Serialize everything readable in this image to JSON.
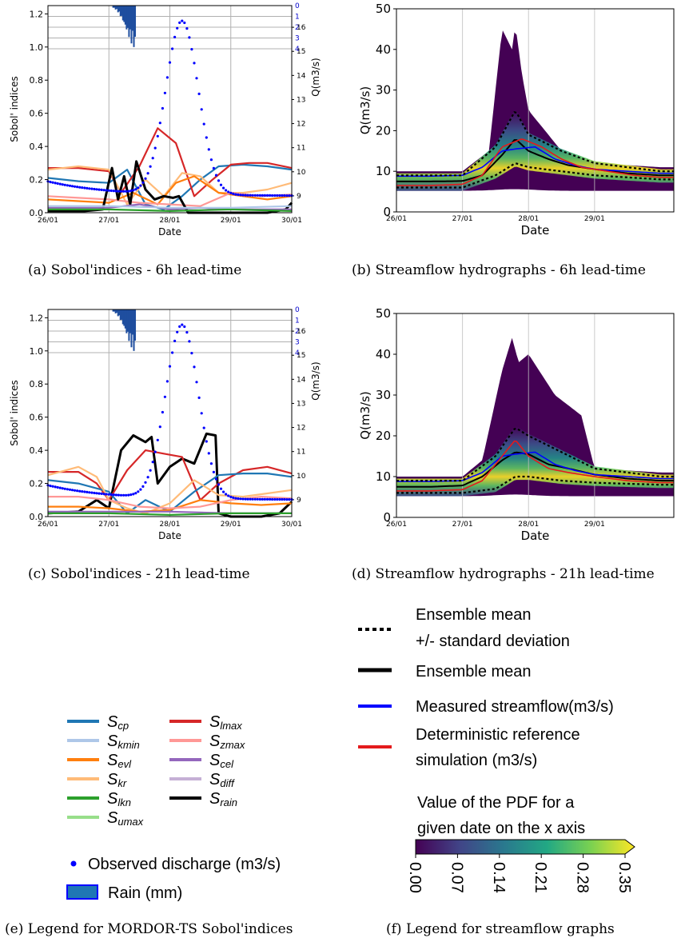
{
  "captions": {
    "a": "(a) Sobol'indices - 6h lead-time",
    "b": "(b) Streamflow hydrographs - 6h lead-time",
    "c": "(c) Sobol'indices - 21h lead-time",
    "d": "(d) Streamflow hydrographs - 21h lead-time",
    "e": "(e) Legend for MORDOR-TS Sobol'indices",
    "f": "(f) Legend for streamflow graphs"
  },
  "sobol_legend": [
    {
      "main": "S",
      "sub": "cp",
      "color": "#1f77b4"
    },
    {
      "main": "S",
      "sub": "kmin",
      "color": "#aec7e8"
    },
    {
      "main": "S",
      "sub": "evl",
      "color": "#ff7f0e"
    },
    {
      "main": "S",
      "sub": "kr",
      "color": "#ffbb78"
    },
    {
      "main": "S",
      "sub": "lkn",
      "color": "#2ca02c"
    },
    {
      "main": "S",
      "sub": "umax",
      "color": "#98df8a"
    },
    {
      "main": "S",
      "sub": "lmax",
      "color": "#d62728"
    },
    {
      "main": "S",
      "sub": "zmax",
      "color": "#ff9896"
    },
    {
      "main": "S",
      "sub": "cel",
      "color": "#9467bd"
    },
    {
      "main": "S",
      "sub": "diff",
      "color": "#c5b0d5"
    },
    {
      "main": "S",
      "sub": "rain",
      "color": "#000000"
    }
  ],
  "observed_label": "Observed discharge (m3/s)",
  "rain_label": "Rain (mm)",
  "stream_legend": {
    "line1_a": "Ensemble mean",
    "line1_b": "+/- standard deviation",
    "line2": "Ensemble mean",
    "line3": "Measured streamflow(m3/s)",
    "line4_a": "Deterministic reference",
    "line4_b": "simulation (m3/s)",
    "cbar_title_a": "Value of the PDF for a",
    "cbar_title_b": "given date on the x axis",
    "cbar_ticks": [
      "0.00",
      "0.07",
      "0.14",
      "0.21",
      "0.28",
      "0.35"
    ]
  },
  "chart_data": [
    {
      "id": "a",
      "type": "line",
      "xlabel": "Date",
      "ylabel": "Sobol' indices",
      "y2label": "Q(m3/s)",
      "x_ticks": [
        "26/01",
        "27/01",
        "28/01",
        "29/01",
        "30/01"
      ],
      "ylim": [
        0,
        1.25
      ],
      "y_ticks": [
        "0.0",
        "0.2",
        "0.4",
        "0.6",
        "0.8",
        "1.0",
        "1.2"
      ],
      "y2_ticks": [
        "9",
        "10",
        "11",
        "12",
        "13",
        "14",
        "15",
        "16"
      ],
      "rain_ticks": [
        "0",
        "1",
        "2",
        "3",
        "4"
      ],
      "series": [
        {
          "key": "cp",
          "x": [
            0,
            0.5,
            1,
            1.3,
            1.6,
            1.9,
            2.2,
            2.5,
            2.8,
            3.2,
            3.6,
            4
          ],
          "y": [
            0.21,
            0.19,
            0.18,
            0.26,
            0.05,
            0.02,
            0.1,
            0.2,
            0.28,
            0.29,
            0.28,
            0.26
          ]
        },
        {
          "key": "lmax",
          "x": [
            0,
            0.5,
            1,
            1.2,
            1.5,
            1.8,
            2.1,
            2.4,
            2.7,
            3,
            3.3,
            3.6,
            4
          ],
          "y": [
            0.27,
            0.27,
            0.25,
            0.12,
            0.28,
            0.51,
            0.42,
            0.1,
            0.2,
            0.29,
            0.3,
            0.3,
            0.27
          ]
        },
        {
          "key": "kr",
          "x": [
            0,
            0.5,
            1,
            1.3,
            1.6,
            1.9,
            2.2,
            2.5,
            2.8,
            3.2,
            3.6,
            4
          ],
          "y": [
            0.26,
            0.28,
            0.26,
            0.05,
            0.2,
            0.1,
            0.24,
            0.22,
            0.12,
            0.12,
            0.14,
            0.18
          ]
        },
        {
          "key": "evl",
          "x": [
            0,
            0.5,
            1,
            1.4,
            1.8,
            2.1,
            2.4,
            2.8,
            3.2,
            3.6,
            4
          ],
          "y": [
            0.08,
            0.07,
            0.06,
            0.12,
            0.05,
            0.18,
            0.22,
            0.12,
            0.1,
            0.08,
            0.1
          ]
        },
        {
          "key": "zmax",
          "x": [
            0,
            0.5,
            1,
            1.5,
            2,
            2.5,
            3,
            3.5,
            4
          ],
          "y": [
            0.1,
            0.09,
            0.08,
            0.06,
            0.05,
            0.04,
            0.12,
            0.1,
            0.11
          ]
        },
        {
          "key": "rain",
          "x": [
            0,
            0.6,
            0.9,
            1.05,
            1.15,
            1.25,
            1.35,
            1.45,
            1.6,
            1.75,
            1.9,
            2.05,
            2.15,
            2.3,
            2.5,
            3,
            3.6,
            3.9,
            4
          ],
          "y": [
            0.01,
            0.01,
            0.02,
            0.27,
            0.08,
            0.22,
            0.05,
            0.31,
            0.14,
            0.08,
            0.1,
            0.09,
            0.1,
            0.0,
            0.0,
            0.0,
            0.0,
            0.02,
            0.06
          ]
        },
        {
          "key": "cel",
          "x": [
            0,
            1,
            1.5,
            2,
            2.5,
            3,
            4
          ],
          "y": [
            0.03,
            0.03,
            0.05,
            0.02,
            0.03,
            0.02,
            0.02
          ]
        },
        {
          "key": "lkn",
          "x": [
            0,
            1,
            2,
            3,
            4
          ],
          "y": [
            0.02,
            0.02,
            0.01,
            0.02,
            0.01
          ]
        },
        {
          "key": "kmin",
          "x": [
            0,
            1,
            2,
            3,
            4
          ],
          "y": [
            0.04,
            0.04,
            0.03,
            0.03,
            0.04
          ]
        }
      ],
      "observed_q": {
        "x_start": 0,
        "x_end": 4,
        "peak_x": 2.2,
        "peak_q": 16.2,
        "base_q": 9
      }
    },
    {
      "id": "b",
      "type": "area",
      "xlabel": "Date",
      "ylabel": "Q(m3/s)",
      "x_ticks": [
        "26/01",
        "27/01",
        "28/01",
        "29/01"
      ],
      "ylim": [
        0,
        50
      ],
      "y_ticks": [
        "0",
        "10",
        "20",
        "30",
        "40",
        "50"
      ],
      "series": [
        {
          "key": "ensemble_mean",
          "x": [
            0,
            0.5,
            1,
            1.3,
            1.6,
            1.8,
            2,
            2.3,
            2.6,
            3,
            3.5,
            4
          ],
          "y": [
            7.5,
            7.5,
            7.6,
            9,
            14,
            18,
            15,
            13,
            11.5,
            10.5,
            9.5,
            9
          ]
        },
        {
          "key": "measured",
          "x": [
            0,
            0.5,
            1,
            1.3,
            1.6,
            1.8,
            2.1,
            2.4,
            2.7,
            3,
            3.5,
            4
          ],
          "y": [
            8.8,
            8.8,
            9,
            11,
            15,
            15.5,
            16,
            13,
            11.5,
            10.5,
            10,
            9.5
          ]
        },
        {
          "key": "reference",
          "x": [
            0,
            0.5,
            1,
            1.3,
            1.6,
            1.9,
            2.2,
            2.5,
            2.8,
            3.2,
            3.6,
            4
          ],
          "y": [
            6.5,
            6.5,
            6.8,
            9,
            16,
            18,
            16,
            13,
            11,
            10,
            9,
            8.5
          ]
        },
        {
          "key": "mean_plus_sd",
          "x": [
            0,
            1,
            1.5,
            1.8,
            2,
            2.5,
            3,
            4
          ],
          "y": [
            9,
            9,
            16,
            25,
            19,
            15,
            12,
            10
          ]
        },
        {
          "key": "mean_minus_sd",
          "x": [
            0,
            1,
            1.5,
            1.8,
            2,
            2.5,
            3,
            4
          ],
          "y": [
            6,
            6,
            9,
            12,
            11,
            10,
            9,
            8
          ]
        }
      ],
      "pdf_envelope_max": {
        "x": [
          0,
          1,
          1.4,
          1.6,
          1.75,
          1.8,
          1.9,
          2,
          2.5,
          3,
          4
        ],
        "y": [
          10,
          10,
          15,
          45,
          40,
          46,
          34,
          25,
          15,
          12,
          11
        ]
      }
    },
    {
      "id": "c",
      "type": "line",
      "xlabel": "Date",
      "ylabel": "Sobol' indices",
      "y2label": "Q(m3/s)",
      "x_ticks": [
        "26/01",
        "27/01",
        "28/01",
        "29/01",
        "30/01"
      ],
      "ylim": [
        0,
        1.25
      ],
      "y_ticks": [
        "0.0",
        "0.2",
        "0.4",
        "0.6",
        "0.8",
        "1.0",
        "1.2"
      ],
      "y2_ticks": [
        "9",
        "10",
        "11",
        "12",
        "13",
        "14",
        "15",
        "16"
      ],
      "rain_ticks": [
        "0",
        "1",
        "2",
        "3",
        "4"
      ],
      "series": [
        {
          "key": "rain",
          "x": [
            0,
            0.5,
            0.8,
            1,
            1.2,
            1.4,
            1.6,
            1.7,
            1.8,
            2,
            2.2,
            2.4,
            2.6,
            2.75,
            2.8,
            3,
            3.5,
            3.8,
            4
          ],
          "y": [
            0.02,
            0.03,
            0.1,
            0.05,
            0.4,
            0.49,
            0.45,
            0.48,
            0.2,
            0.3,
            0.35,
            0.32,
            0.5,
            0.49,
            0.02,
            0.0,
            0.0,
            0.02,
            0.09
          ]
        },
        {
          "key": "lmax",
          "x": [
            0,
            0.5,
            0.8,
            1,
            1.3,
            1.6,
            1.9,
            2.2,
            2.5,
            2.8,
            3.2,
            3.6,
            4
          ],
          "y": [
            0.27,
            0.27,
            0.2,
            0.1,
            0.28,
            0.4,
            0.38,
            0.36,
            0.1,
            0.2,
            0.28,
            0.3,
            0.26
          ]
        },
        {
          "key": "cp",
          "x": [
            0,
            0.5,
            1,
            1.3,
            1.6,
            2,
            2.4,
            2.8,
            3.2,
            3.6,
            4
          ],
          "y": [
            0.22,
            0.2,
            0.15,
            0.02,
            0.1,
            0.03,
            0.15,
            0.25,
            0.26,
            0.26,
            0.24
          ]
        },
        {
          "key": "kr",
          "x": [
            0,
            0.5,
            0.8,
            1,
            1.3,
            1.6,
            2,
            2.4,
            2.8,
            3.2,
            3.6,
            4
          ],
          "y": [
            0.25,
            0.3,
            0.24,
            0.1,
            0.05,
            0.02,
            0.08,
            0.22,
            0.13,
            0.12,
            0.14,
            0.16
          ]
        },
        {
          "key": "evl",
          "x": [
            0,
            0.5,
            1,
            1.5,
            2,
            2.5,
            3,
            3.5,
            4
          ],
          "y": [
            0.06,
            0.06,
            0.05,
            0.03,
            0.04,
            0.1,
            0.08,
            0.07,
            0.08
          ]
        },
        {
          "key": "zmax",
          "x": [
            0,
            0.5,
            1,
            1.5,
            2,
            2.5,
            3,
            3.5,
            4
          ],
          "y": [
            0.12,
            0.12,
            0.1,
            0.06,
            0.05,
            0.06,
            0.1,
            0.12,
            0.11
          ]
        },
        {
          "key": "cel",
          "x": [
            0,
            1,
            2,
            3,
            4
          ],
          "y": [
            0.03,
            0.03,
            0.03,
            0.02,
            0.02
          ]
        },
        {
          "key": "lkn",
          "x": [
            0,
            1,
            2,
            3,
            4
          ],
          "y": [
            0.02,
            0.02,
            0.01,
            0.02,
            0.02
          ]
        }
      ],
      "observed_q": {
        "x_start": 0,
        "x_end": 4,
        "peak_x": 2.2,
        "peak_q": 16.2,
        "base_q": 9
      }
    },
    {
      "id": "d",
      "type": "area",
      "xlabel": "Date",
      "ylabel": "Q(m3/s)",
      "x_ticks": [
        "26/01",
        "27/01",
        "28/01",
        "29/01"
      ],
      "ylim": [
        0,
        50
      ],
      "y_ticks": [
        "0",
        "10",
        "20",
        "30",
        "40",
        "50"
      ],
      "series": [
        {
          "key": "ensemble_mean",
          "x": [
            0,
            0.5,
            1,
            1.3,
            1.6,
            1.8,
            2,
            2.3,
            2.6,
            3,
            3.5,
            4
          ],
          "y": [
            7.5,
            7.5,
            7.8,
            10,
            14,
            16,
            15.5,
            13,
            12,
            10.5,
            9.5,
            9
          ]
        },
        {
          "key": "measured",
          "x": [
            0,
            0.5,
            1,
            1.3,
            1.6,
            1.8,
            2.1,
            2.4,
            2.7,
            3,
            3.5,
            4
          ],
          "y": [
            8.8,
            8.8,
            9,
            11,
            15,
            15.5,
            16,
            13,
            11.5,
            10.5,
            10,
            9.5
          ]
        },
        {
          "key": "reference",
          "x": [
            0,
            0.5,
            1,
            1.3,
            1.6,
            1.8,
            2,
            2.3,
            2.6,
            3,
            3.5,
            4
          ],
          "y": [
            6.5,
            6.5,
            6.8,
            9,
            15,
            19,
            15,
            12,
            11,
            10,
            9,
            8.5
          ]
        },
        {
          "key": "mean_plus_sd",
          "x": [
            0,
            1,
            1.5,
            1.8,
            2,
            2.5,
            3,
            4
          ],
          "y": [
            9,
            9,
            15,
            22,
            20,
            16,
            12,
            10
          ]
        },
        {
          "key": "mean_minus_sd",
          "x": [
            0,
            1,
            1.5,
            1.8,
            2,
            2.5,
            3,
            4
          ],
          "y": [
            6,
            6,
            7,
            10,
            10,
            9,
            8.5,
            8
          ]
        }
      ],
      "pdf_envelope_max": {
        "x": [
          0,
          1,
          1.3,
          1.6,
          1.75,
          1.85,
          2,
          2.4,
          2.8,
          3,
          4
        ],
        "y": [
          10,
          10,
          14,
          36,
          44,
          38,
          40,
          30,
          25,
          12,
          11
        ]
      }
    }
  ]
}
